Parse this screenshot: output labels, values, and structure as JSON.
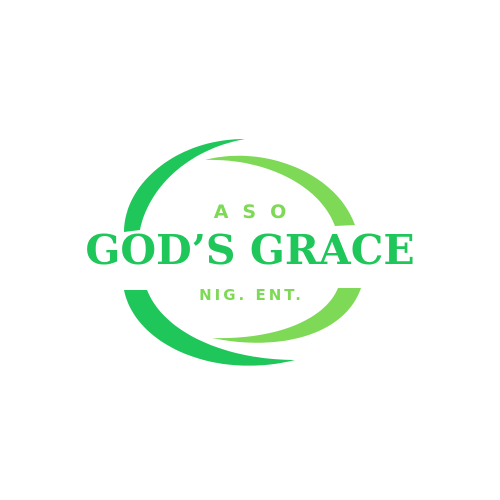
{
  "logo": {
    "top_text": "ASO",
    "name": "GOD’S GRACE",
    "bottom_text": "NIG. ENT.",
    "colors": {
      "primary_green": "#1fc65a",
      "light_green": "#7ed957",
      "background": "#ffffff"
    }
  }
}
